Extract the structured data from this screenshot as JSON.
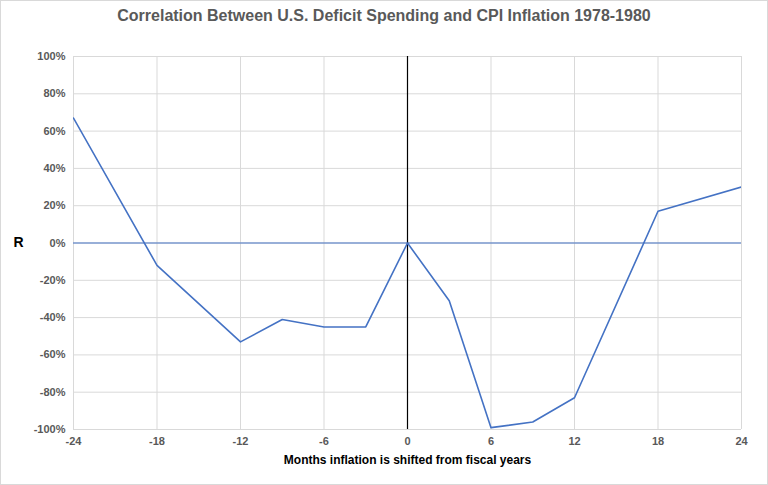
{
  "chart_data": {
    "type": "line",
    "title": "Correlation Between U.S. Deficit Spending and CPI Inflation 1978-1980",
    "x_label": "Months inflation is shifted from fiscal years",
    "y_label": "R",
    "x": [
      -24,
      -18,
      -12,
      -9,
      -6,
      -3,
      0,
      3,
      6,
      9,
      12,
      18,
      24
    ],
    "values": [
      67,
      -12,
      -53,
      -41,
      -45,
      -45,
      0,
      -31,
      -99,
      -96,
      -83,
      17,
      30
    ],
    "color": "#4472c4",
    "xlim": [
      -24,
      24
    ],
    "xticks": [
      -24,
      -18,
      -12,
      -6,
      0,
      6,
      12,
      18,
      24
    ],
    "ylim": [
      -100,
      100
    ],
    "yticks": [
      {
        "value": -100,
        "label": "-100%"
      },
      {
        "value": -80,
        "label": "-80%"
      },
      {
        "value": -60,
        "label": "-60%"
      },
      {
        "value": -40,
        "label": "-40%"
      },
      {
        "value": -20,
        "label": "-20%"
      },
      {
        "value": 0,
        "label": "0%"
      },
      {
        "value": 20,
        "label": "20%"
      },
      {
        "value": 40,
        "label": "40%"
      },
      {
        "value": 60,
        "label": "60%"
      },
      {
        "value": 80,
        "label": "80%"
      },
      {
        "value": 100,
        "label": "100%"
      }
    ],
    "grid": true
  }
}
